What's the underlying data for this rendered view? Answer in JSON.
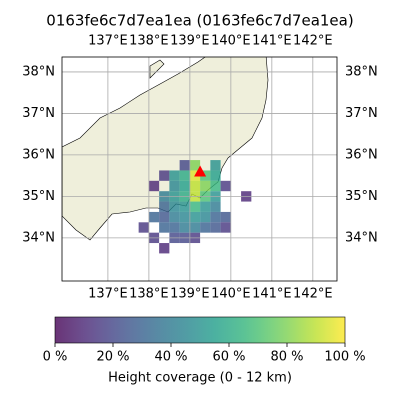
{
  "map": {
    "title": "0163fe6c7d7ea1ea (0163fe6c7d7ea1ea)",
    "extent": {
      "lon": [
        135.88,
        142.59
      ],
      "lat": [
        32.96,
        38.36
      ]
    },
    "lon_ticks": [
      {
        "value": 137,
        "label": "137°E"
      },
      {
        "value": 138,
        "label": "138°E"
      },
      {
        "value": 139,
        "label": "139°E"
      },
      {
        "value": 140,
        "label": "140°E"
      },
      {
        "value": 141,
        "label": "141°E"
      },
      {
        "value": 142,
        "label": "142°E"
      }
    ],
    "lat_ticks": [
      {
        "value": 34,
        "label": "34°N"
      },
      {
        "value": 35,
        "label": "35°N"
      },
      {
        "value": 36,
        "label": "36°N"
      },
      {
        "value": 37,
        "label": "37°N"
      },
      {
        "value": 38,
        "label": "38°N"
      }
    ],
    "cell_size": 0.25,
    "colormap": "viridis",
    "marker": {
      "lon": 139.25,
      "lat": 35.6,
      "color": "#ff0000"
    },
    "cells": [
      {
        "lon": 138.75,
        "lat": 35.625,
        "value": 20
      },
      {
        "lon": 139.0,
        "lat": 35.625,
        "value": 80
      },
      {
        "lon": 139.5,
        "lat": 35.625,
        "value": 50
      },
      {
        "lon": 138.25,
        "lat": 35.375,
        "value": 15
      },
      {
        "lon": 138.5,
        "lat": 35.375,
        "value": 50
      },
      {
        "lon": 138.75,
        "lat": 35.375,
        "value": 60
      },
      {
        "lon": 139.0,
        "lat": 35.375,
        "value": 95
      },
      {
        "lon": 139.25,
        "lat": 35.375,
        "value": 70
      },
      {
        "lon": 139.5,
        "lat": 35.375,
        "value": 55
      },
      {
        "lon": 138.0,
        "lat": 35.125,
        "value": 10
      },
      {
        "lon": 138.5,
        "lat": 35.125,
        "value": 45
      },
      {
        "lon": 138.75,
        "lat": 35.125,
        "value": 55
      },
      {
        "lon": 139.0,
        "lat": 35.125,
        "value": 90
      },
      {
        "lon": 139.25,
        "lat": 35.125,
        "value": 80
      },
      {
        "lon": 139.5,
        "lat": 35.125,
        "value": 65
      },
      {
        "lon": 139.75,
        "lat": 35.125,
        "value": 15
      },
      {
        "lon": 138.25,
        "lat": 34.875,
        "value": 40
      },
      {
        "lon": 138.5,
        "lat": 34.875,
        "value": 50
      },
      {
        "lon": 138.75,
        "lat": 34.875,
        "value": 60
      },
      {
        "lon": 139.0,
        "lat": 34.875,
        "value": 90
      },
      {
        "lon": 139.25,
        "lat": 34.875,
        "value": 70
      },
      {
        "lon": 139.5,
        "lat": 34.875,
        "value": 50
      },
      {
        "lon": 140.25,
        "lat": 34.875,
        "value": 10
      },
      {
        "lon": 138.25,
        "lat": 34.625,
        "value": 30
      },
      {
        "lon": 138.5,
        "lat": 34.625,
        "value": 45
      },
      {
        "lon": 138.75,
        "lat": 34.625,
        "value": 50
      },
      {
        "lon": 139.0,
        "lat": 34.625,
        "value": 65
      },
      {
        "lon": 139.25,
        "lat": 34.625,
        "value": 50
      },
      {
        "lon": 139.5,
        "lat": 34.625,
        "value": 40
      },
      {
        "lon": 138.0,
        "lat": 34.375,
        "value": 30
      },
      {
        "lon": 138.25,
        "lat": 34.375,
        "value": 25
      },
      {
        "lon": 138.5,
        "lat": 34.375,
        "value": 40
      },
      {
        "lon": 138.75,
        "lat": 34.375,
        "value": 45
      },
      {
        "lon": 139.0,
        "lat": 34.375,
        "value": 50
      },
      {
        "lon": 139.25,
        "lat": 34.375,
        "value": 45
      },
      {
        "lon": 139.5,
        "lat": 34.375,
        "value": 30
      },
      {
        "lon": 139.75,
        "lat": 34.375,
        "value": 25
      },
      {
        "lon": 137.75,
        "lat": 34.125,
        "value": 15
      },
      {
        "lon": 138.25,
        "lat": 34.125,
        "value": 30
      },
      {
        "lon": 138.5,
        "lat": 34.125,
        "value": 30
      },
      {
        "lon": 138.75,
        "lat": 34.125,
        "value": 40
      },
      {
        "lon": 139.0,
        "lat": 34.125,
        "value": 40
      },
      {
        "lon": 139.25,
        "lat": 34.125,
        "value": 30
      },
      {
        "lon": 139.5,
        "lat": 34.125,
        "value": 25
      },
      {
        "lon": 139.75,
        "lat": 34.125,
        "value": 15
      },
      {
        "lon": 138.0,
        "lat": 33.875,
        "value": 15
      },
      {
        "lon": 138.5,
        "lat": 33.875,
        "value": 20
      },
      {
        "lon": 138.75,
        "lat": 33.875,
        "value": 20
      },
      {
        "lon": 139.0,
        "lat": 33.875,
        "value": 15
      },
      {
        "lon": 138.25,
        "lat": 33.625,
        "value": 10
      }
    ],
    "colorbar": {
      "label": "Height coverage (0 - 12 km)",
      "lim": [
        0,
        100
      ],
      "ticks": [
        {
          "value": 0,
          "label": "0 %"
        },
        {
          "value": 20,
          "label": "20 %"
        },
        {
          "value": 40,
          "label": "40 %"
        },
        {
          "value": 60,
          "label": "60 %"
        },
        {
          "value": 80,
          "label": "80 %"
        },
        {
          "value": 100,
          "label": "100 %"
        }
      ]
    }
  }
}
